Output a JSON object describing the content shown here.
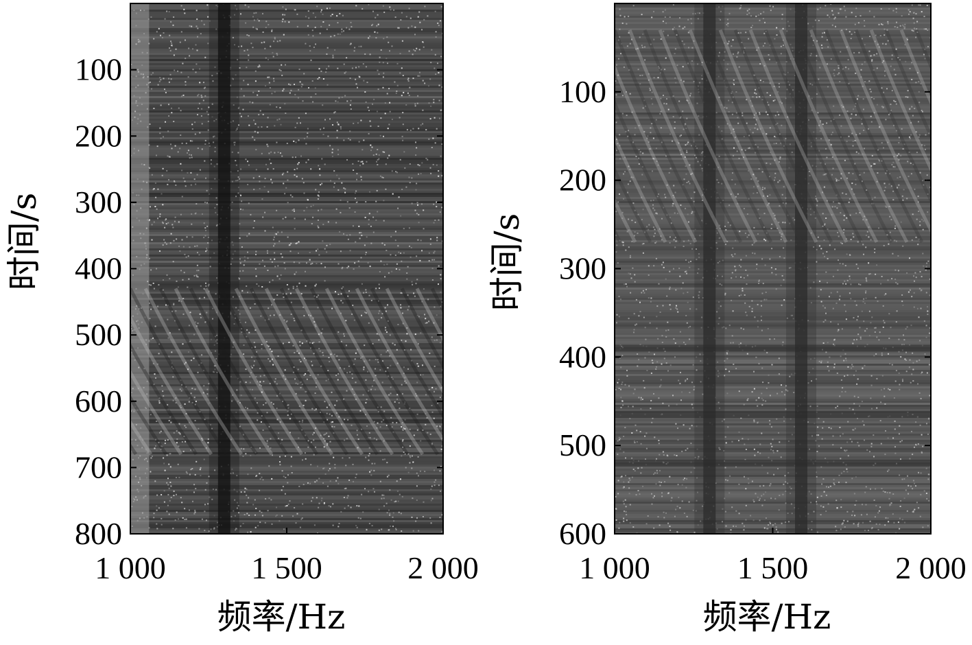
{
  "chart_data": [
    {
      "type": "heatmap",
      "colormap": "grayscale",
      "xlabel": "频率/Hz",
      "ylabel": "时间/s",
      "xlim": [
        1000,
        2000
      ],
      "ylim": [
        0,
        800
      ],
      "y_inverted": true,
      "x_ticks": [
        1000,
        1500,
        2000
      ],
      "x_tick_labels": [
        "1 000",
        "1 500",
        "2 000"
      ],
      "y_ticks": [
        100,
        200,
        300,
        400,
        500,
        600,
        700,
        800
      ],
      "y_tick_labels": [
        "100",
        "200",
        "300",
        "400",
        "500",
        "600",
        "700",
        "800"
      ],
      "features": [
        {
          "kind": "vertical_dark_band",
          "x": 1300
        },
        {
          "kind": "light_edge_band",
          "x": [
            1000,
            1060
          ]
        },
        {
          "kind": "interference_fringes",
          "y": [
            430,
            680
          ]
        }
      ]
    },
    {
      "type": "heatmap",
      "colormap": "grayscale",
      "xlabel": "频率/Hz",
      "ylabel": "时间/s",
      "xlim": [
        1000,
        2000
      ],
      "ylim": [
        0,
        600
      ],
      "y_inverted": true,
      "x_ticks": [
        1000,
        1500,
        2000
      ],
      "x_tick_labels": [
        "1 000",
        "1 500",
        "2 000"
      ],
      "y_ticks": [
        100,
        200,
        300,
        400,
        500,
        600
      ],
      "y_tick_labels": [
        "100",
        "200",
        "300",
        "400",
        "500",
        "600"
      ],
      "features": [
        {
          "kind": "vertical_dark_band",
          "x": 1300
        },
        {
          "kind": "vertical_dark_band",
          "x": 1590
        },
        {
          "kind": "horizontal_dark_bands",
          "y": [
            390,
            465,
            520
          ]
        },
        {
          "kind": "interference_fringes",
          "y": [
            30,
            270
          ]
        }
      ]
    }
  ]
}
